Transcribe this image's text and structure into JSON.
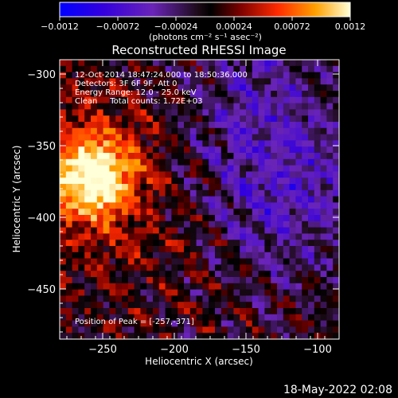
{
  "chart_data": {
    "type": "heatmap",
    "title": "Reconstructed RHESSI Image",
    "xlabel": "Heliocentric X (arcsec)",
    "ylabel": "Heliocentric Y (arcsec)",
    "xlim": [
      -280,
      -85
    ],
    "ylim": [
      -485,
      -290
    ],
    "x_ticks": [
      -250,
      -200,
      -150,
      -100
    ],
    "x_tick_labels": [
      "−250",
      "−200",
      "−150",
      "−100"
    ],
    "y_ticks": [
      -300,
      -350,
      -400,
      -450
    ],
    "y_tick_labels": [
      "−300",
      "−350",
      "−400",
      "−450"
    ],
    "colorbar": {
      "range": [
        -0.0012,
        0.0012
      ],
      "ticks": [
        -0.0012,
        -0.00072,
        -0.00024,
        0.00024,
        0.00072,
        0.0012
      ],
      "tick_labels": [
        "−0.0012",
        "−0.00072",
        "−0.00024",
        "0.00024",
        "0.00072",
        "0.0012"
      ],
      "unit_label": "(photons cm⁻² s⁻¹ asec⁻²)"
    },
    "annotations": [
      "12-Oct-2014 18:47:24.000 to 18:50:36.000",
      "Detectors: 3F 6F 9F, Att 0",
      "Energy Range: 12.0 - 25.0 keV",
      "Clean     Total counts: 1.72E+03"
    ],
    "peak_text": "Position of Peak = [-257,-371]",
    "peak": [
      -257,
      -371
    ],
    "peak_value": 0.0012
  },
  "footer": {
    "date": "18-May-2022 02:08"
  }
}
